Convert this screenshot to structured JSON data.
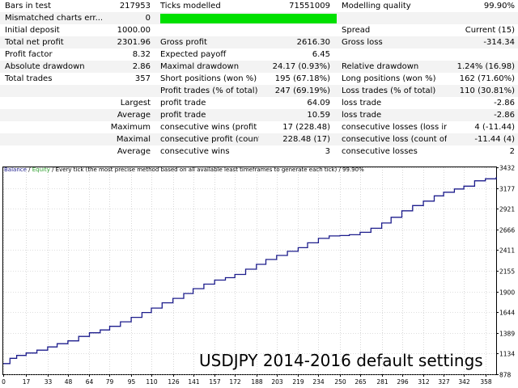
{
  "report": {
    "rows": [
      {
        "bg": "w",
        "cells": [
          {
            "text": "Bars in test",
            "x": 6,
            "w": 120,
            "a": "l"
          },
          {
            "text": "217953",
            "x": 120,
            "w": 66,
            "a": "r"
          },
          {
            "text": "Ticks modelled",
            "x": 198,
            "w": 120,
            "a": "l"
          },
          {
            "text": "71551009",
            "x": 320,
            "w": 88,
            "a": "r"
          },
          {
            "text": "Modelling quality",
            "x": 422,
            "w": 120,
            "a": "l"
          },
          {
            "text": "99.90%",
            "x": 560,
            "w": 76,
            "a": "r"
          }
        ]
      },
      {
        "bg": "g",
        "bar": true,
        "cells": [
          {
            "text": "Mismatched charts err...",
            "x": 6,
            "w": 120,
            "a": "l"
          },
          {
            "text": "0",
            "x": 120,
            "w": 66,
            "a": "r"
          }
        ]
      },
      {
        "bg": "w",
        "cells": [
          {
            "text": "Initial deposit",
            "x": 6,
            "w": 120,
            "a": "l"
          },
          {
            "text": "1000.00",
            "x": 120,
            "w": 66,
            "a": "r"
          },
          {
            "text": "Spread",
            "x": 422,
            "w": 120,
            "a": "l"
          },
          {
            "text": "Current (15)",
            "x": 560,
            "w": 76,
            "a": "r"
          }
        ]
      },
      {
        "bg": "g",
        "cells": [
          {
            "text": "Total net profit",
            "x": 6,
            "w": 120,
            "a": "l"
          },
          {
            "text": "2301.96",
            "x": 120,
            "w": 66,
            "a": "r"
          },
          {
            "text": "Gross profit",
            "x": 198,
            "w": 120,
            "a": "l"
          },
          {
            "text": "2616.30",
            "x": 320,
            "w": 88,
            "a": "r"
          },
          {
            "text": "Gross loss",
            "x": 422,
            "w": 120,
            "a": "l"
          },
          {
            "text": "-314.34",
            "x": 560,
            "w": 76,
            "a": "r"
          }
        ]
      },
      {
        "bg": "w",
        "cells": [
          {
            "text": "Profit factor",
            "x": 6,
            "w": 120,
            "a": "l"
          },
          {
            "text": "8.32",
            "x": 120,
            "w": 66,
            "a": "r"
          },
          {
            "text": "Expected payoff",
            "x": 198,
            "w": 120,
            "a": "l"
          },
          {
            "text": "6.45",
            "x": 320,
            "w": 88,
            "a": "r"
          }
        ]
      },
      {
        "bg": "g",
        "cells": [
          {
            "text": "Absolute drawdown",
            "x": 6,
            "w": 120,
            "a": "l"
          },
          {
            "text": "2.86",
            "x": 120,
            "w": 66,
            "a": "r"
          },
          {
            "text": "Maximal drawdown",
            "x": 198,
            "w": 120,
            "a": "l"
          },
          {
            "text": "24.17 (0.93%)",
            "x": 320,
            "w": 88,
            "a": "r"
          },
          {
            "text": "Relative drawdown",
            "x": 422,
            "w": 120,
            "a": "l"
          },
          {
            "text": "1.24% (16.98)",
            "x": 548,
            "w": 88,
            "a": "r"
          }
        ]
      },
      {
        "bg": "w",
        "cells": [
          {
            "text": "Total trades",
            "x": 6,
            "w": 120,
            "a": "l"
          },
          {
            "text": "357",
            "x": 120,
            "w": 66,
            "a": "r"
          },
          {
            "text": "Short positions (won %)",
            "x": 198,
            "w": 122,
            "a": "l"
          },
          {
            "text": "195 (67.18%)",
            "x": 320,
            "w": 88,
            "a": "r"
          },
          {
            "text": "Long positions (won %)",
            "x": 422,
            "w": 122,
            "a": "l"
          },
          {
            "text": "162 (71.60%)",
            "x": 548,
            "w": 88,
            "a": "r"
          }
        ]
      },
      {
        "bg": "g",
        "cells": [
          {
            "text": "Profit trades (% of total)",
            "x": 198,
            "w": 122,
            "a": "l"
          },
          {
            "text": "247 (69.19%)",
            "x": 320,
            "w": 88,
            "a": "r"
          },
          {
            "text": "Loss trades (% of total)",
            "x": 422,
            "w": 122,
            "a": "l"
          },
          {
            "text": "110 (30.81%)",
            "x": 548,
            "w": 88,
            "a": "r"
          }
        ]
      },
      {
        "bg": "w",
        "cells": [
          {
            "text": "Largest",
            "x": 100,
            "w": 86,
            "a": "r"
          },
          {
            "text": "profit trade",
            "x": 198,
            "w": 120,
            "a": "l"
          },
          {
            "text": "64.09",
            "x": 320,
            "w": 88,
            "a": "r"
          },
          {
            "text": "loss trade",
            "x": 422,
            "w": 120,
            "a": "l"
          },
          {
            "text": "-2.86",
            "x": 560,
            "w": 76,
            "a": "r"
          }
        ]
      },
      {
        "bg": "g",
        "cells": [
          {
            "text": "Average",
            "x": 100,
            "w": 86,
            "a": "r"
          },
          {
            "text": "profit trade",
            "x": 198,
            "w": 120,
            "a": "l"
          },
          {
            "text": "10.59",
            "x": 320,
            "w": 88,
            "a": "r"
          },
          {
            "text": "loss trade",
            "x": 422,
            "w": 120,
            "a": "l"
          },
          {
            "text": "-2.86",
            "x": 560,
            "w": 76,
            "a": "r"
          }
        ]
      },
      {
        "bg": "w",
        "cells": [
          {
            "text": "Maximum",
            "x": 100,
            "w": 86,
            "a": "r"
          },
          {
            "text": "consecutive wins (profit in...",
            "x": 198,
            "w": 122,
            "a": "l"
          },
          {
            "text": "17 (228.48)",
            "x": 320,
            "w": 88,
            "a": "r"
          },
          {
            "text": "consecutive losses (loss in ...",
            "x": 422,
            "w": 130,
            "a": "l"
          },
          {
            "text": "4 (-11.44)",
            "x": 560,
            "w": 76,
            "a": "r"
          }
        ]
      },
      {
        "bg": "g",
        "cells": [
          {
            "text": "Maximal",
            "x": 100,
            "w": 86,
            "a": "r"
          },
          {
            "text": "consecutive profit (count ...",
            "x": 198,
            "w": 122,
            "a": "l"
          },
          {
            "text": "228.48 (17)",
            "x": 320,
            "w": 88,
            "a": "r"
          },
          {
            "text": "consecutive loss (count of...",
            "x": 422,
            "w": 130,
            "a": "l"
          },
          {
            "text": "-11.44 (4)",
            "x": 560,
            "w": 76,
            "a": "r"
          }
        ]
      },
      {
        "bg": "w",
        "cells": [
          {
            "text": "Average",
            "x": 100,
            "w": 86,
            "a": "r"
          },
          {
            "text": "consecutive wins",
            "x": 198,
            "w": 120,
            "a": "l"
          },
          {
            "text": "3",
            "x": 320,
            "w": 88,
            "a": "r"
          },
          {
            "text": "consecutive losses",
            "x": 422,
            "w": 120,
            "a": "l"
          },
          {
            "text": "2",
            "x": 560,
            "w": 76,
            "a": "r"
          }
        ]
      }
    ]
  },
  "chart_data": {
    "type": "line",
    "legend": {
      "balance": "Balance",
      "sep1": " / ",
      "equity": "Equity",
      "rest": " / Every tick (the most precise method based on all available least timeframes to generate each tick) / 99.90%"
    },
    "annotation": "USDJPY 2014-2016 default settings",
    "xlim": [
      0,
      366
    ],
    "ylim": [
      878,
      3432
    ],
    "x_ticks": [
      0,
      17,
      33,
      48,
      64,
      79,
      95,
      110,
      126,
      141,
      157,
      172,
      188,
      203,
      219,
      234,
      250,
      265,
      281,
      296,
      312,
      327,
      342,
      358
    ],
    "y_ticks": [
      878,
      1134,
      1389,
      1644,
      1900,
      2155,
      2411,
      2666,
      2921,
      3177,
      3432
    ],
    "colors": {
      "balance": "#1d1d8c",
      "equity": "#2fa02f"
    },
    "series": [
      {
        "name": "Balance",
        "x": [
          0,
          5,
          10,
          17,
          25,
          33,
          40,
          48,
          56,
          64,
          72,
          79,
          87,
          95,
          103,
          110,
          118,
          126,
          134,
          141,
          149,
          157,
          165,
          172,
          180,
          188,
          195,
          203,
          211,
          219,
          226,
          234,
          242,
          250,
          257,
          265,
          273,
          281,
          288,
          296,
          304,
          312,
          320,
          327,
          335,
          342,
          350,
          358,
          366
        ],
        "y": [
          1010,
          1075,
          1110,
          1140,
          1175,
          1215,
          1255,
          1290,
          1345,
          1390,
          1425,
          1470,
          1525,
          1580,
          1640,
          1695,
          1760,
          1815,
          1875,
          1935,
          1990,
          2040,
          2070,
          2110,
          2175,
          2235,
          2295,
          2345,
          2395,
          2440,
          2500,
          2555,
          2585,
          2590,
          2600,
          2630,
          2680,
          2745,
          2815,
          2895,
          2960,
          3015,
          3080,
          3125,
          3165,
          3200,
          3265,
          3290,
          3310
        ]
      }
    ]
  }
}
